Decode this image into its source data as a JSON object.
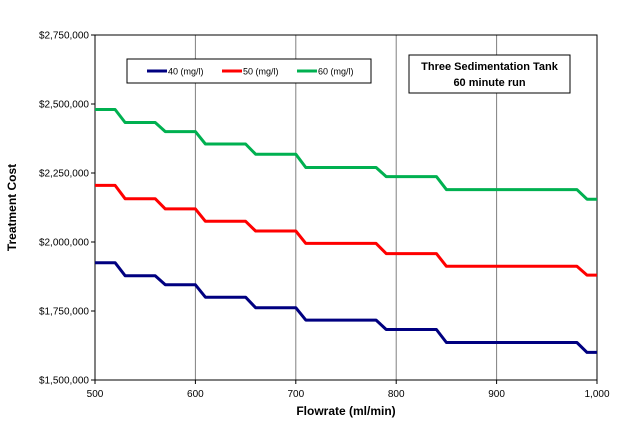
{
  "chart_data": {
    "type": "line",
    "title": "",
    "xlabel": "Flowrate (ml/min)",
    "ylabel": "Treatment Cost",
    "xlim": [
      500,
      1000
    ],
    "ylim": [
      1500000,
      2750000
    ],
    "x_ticks": [
      500,
      600,
      700,
      800,
      900,
      1000
    ],
    "x_tick_labels": [
      "500",
      "600",
      "700",
      "800",
      "900",
      "1,000"
    ],
    "y_ticks": [
      1500000,
      1750000,
      2000000,
      2250000,
      2500000,
      2750000
    ],
    "y_tick_labels": [
      "$1,500,000",
      "$1,750,000",
      "$2,000,000",
      "$2,250,000",
      "$2,500,000",
      "$2,750,000"
    ],
    "grid": "vertical",
    "legend_position": "top-left",
    "annotation": [
      "Three Sedimentation Tank",
      "60 minute run"
    ],
    "colors": {
      "s40": "#000080",
      "s50": "#ff0000",
      "s60": "#00b050"
    },
    "series": [
      {
        "name": "40 (mg/l)",
        "color": "#000080",
        "x": [
          500,
          520,
          530,
          560,
          570,
          600,
          610,
          650,
          660,
          700,
          710,
          780,
          790,
          840,
          850,
          980,
          990,
          1000
        ],
        "values": [
          1925000,
          1925000,
          1878000,
          1878000,
          1845000,
          1845000,
          1800000,
          1800000,
          1762000,
          1762000,
          1717000,
          1717000,
          1683000,
          1683000,
          1636000,
          1636000,
          1600000,
          1600000
        ]
      },
      {
        "name": "50 (mg/l)",
        "color": "#ff0000",
        "x": [
          500,
          520,
          530,
          560,
          570,
          600,
          610,
          650,
          660,
          700,
          710,
          780,
          790,
          840,
          850,
          980,
          990,
          1000
        ],
        "values": [
          2205000,
          2205000,
          2157000,
          2157000,
          2120000,
          2120000,
          2075000,
          2075000,
          2040000,
          2040000,
          1995000,
          1995000,
          1958000,
          1958000,
          1912000,
          1912000,
          1880000,
          1880000
        ]
      },
      {
        "name": "60 (mg/l)",
        "color": "#00b050",
        "x": [
          500,
          520,
          530,
          560,
          570,
          600,
          610,
          650,
          660,
          700,
          710,
          780,
          790,
          840,
          850,
          980,
          990,
          1000
        ],
        "values": [
          2480000,
          2480000,
          2433000,
          2433000,
          2400000,
          2400000,
          2355000,
          2355000,
          2318000,
          2318000,
          2270000,
          2270000,
          2237000,
          2237000,
          2190000,
          2190000,
          2155000,
          2155000
        ]
      }
    ]
  }
}
